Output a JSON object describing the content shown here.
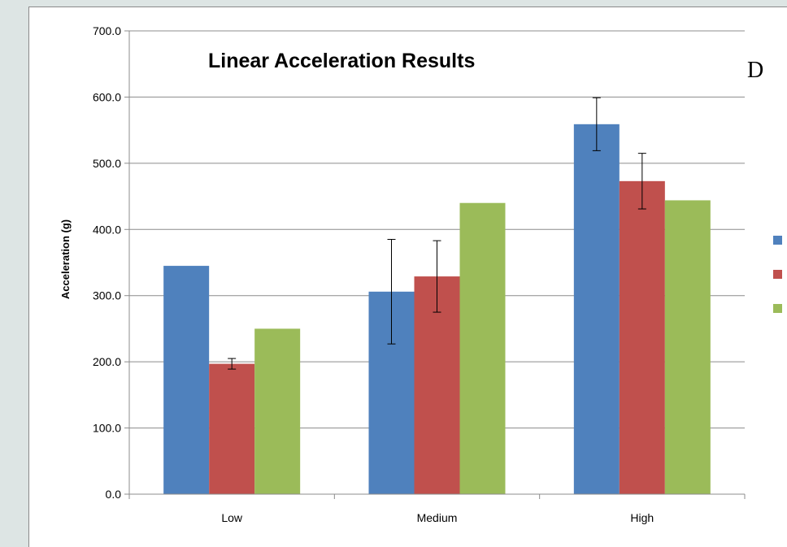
{
  "panel_label": "D",
  "chart_data": {
    "type": "bar",
    "title": "Linear Acceleration Results",
    "xlabel": "",
    "ylabel": "Acceleration (g)",
    "ylim": [
      0,
      700
    ],
    "yticks": [
      "0.0",
      "100.0",
      "200.0",
      "300.0",
      "400.0",
      "500.0",
      "600.0",
      "700.0"
    ],
    "grid": true,
    "legend_position": "right",
    "categories": [
      "Low",
      "Medium",
      "High"
    ],
    "series": [
      {
        "color": "#4f81bd",
        "values": [
          345,
          306,
          559
        ],
        "error": [
          null,
          79,
          40
        ]
      },
      {
        "color": "#c0504d",
        "values": [
          197,
          329,
          473
        ],
        "error": [
          8,
          54,
          42
        ]
      },
      {
        "color": "#9bbb59",
        "values": [
          250,
          440,
          444
        ],
        "error": [
          null,
          null,
          null
        ]
      }
    ]
  }
}
